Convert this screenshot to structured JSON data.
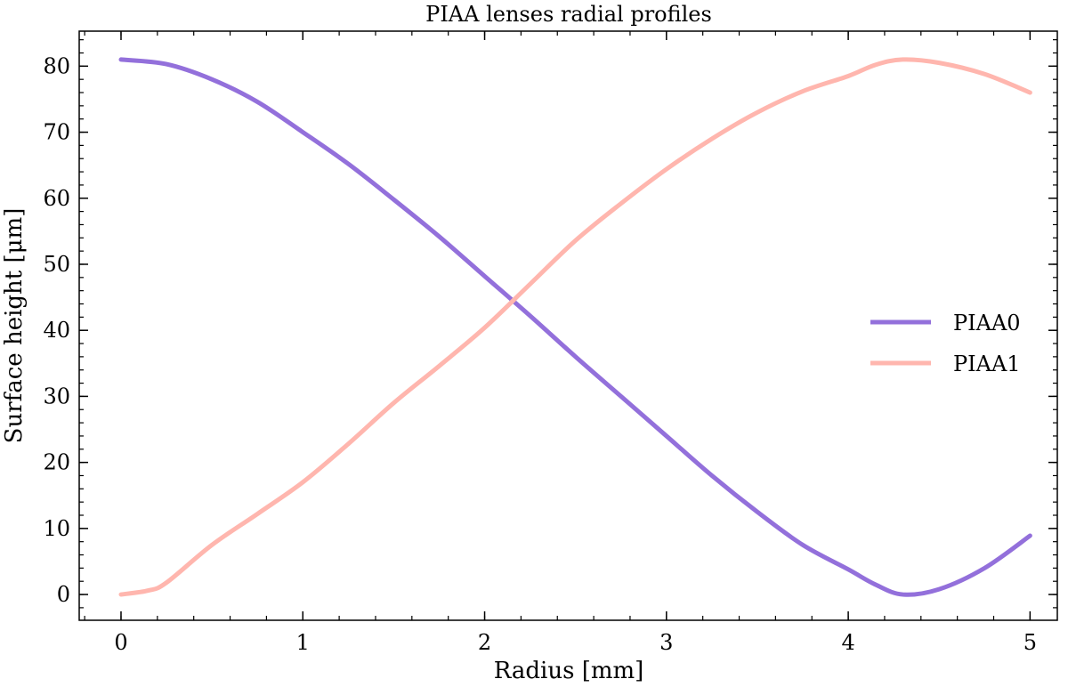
{
  "chart_data": {
    "type": "line",
    "title": "PIAA lenses radial profiles",
    "xlabel": "Radius [mm]",
    "ylabel": "Surface height [μm]",
    "xlim": [
      -0.23,
      5.15
    ],
    "ylim": [
      -3.9,
      85.3
    ],
    "xticks": [
      0,
      1,
      2,
      3,
      4,
      5
    ],
    "yticks": [
      0,
      10,
      20,
      30,
      40,
      50,
      60,
      70,
      80
    ],
    "x_minor_step": 0.2,
    "y_minor_step": 2,
    "tick_direction": "in",
    "grid": false,
    "legend_position": "center-right",
    "series": [
      {
        "name": "PIAA0",
        "color": "#9370db",
        "x": [
          0,
          0.25,
          0.5,
          0.75,
          1,
          1.25,
          1.5,
          1.75,
          2,
          2.25,
          2.5,
          2.75,
          3,
          3.25,
          3.5,
          3.75,
          4,
          4.15,
          4.3,
          4.5,
          4.75,
          5
        ],
        "y": [
          81,
          80.3,
          78,
          74.6,
          70,
          65.2,
          59.8,
          54.2,
          48.2,
          42.2,
          36,
          30,
          24,
          18,
          12.5,
          7.5,
          3.8,
          1.5,
          0,
          0.8,
          4,
          8.9
        ]
      },
      {
        "name": "PIAA1",
        "color": "#ffb6ae",
        "x": [
          0,
          0.15,
          0.25,
          0.5,
          0.75,
          1,
          1.25,
          1.5,
          1.75,
          2,
          2.25,
          2.5,
          2.75,
          3,
          3.25,
          3.5,
          3.75,
          4,
          4.15,
          4.3,
          4.5,
          4.75,
          5
        ],
        "y": [
          0,
          0.6,
          1.8,
          7.5,
          12.2,
          17,
          22.8,
          29,
          34.6,
          40.4,
          47,
          53.6,
          59.2,
          64.4,
          69,
          73,
          76.2,
          78.5,
          80.2,
          81,
          80.5,
          78.8,
          76
        ]
      }
    ]
  }
}
